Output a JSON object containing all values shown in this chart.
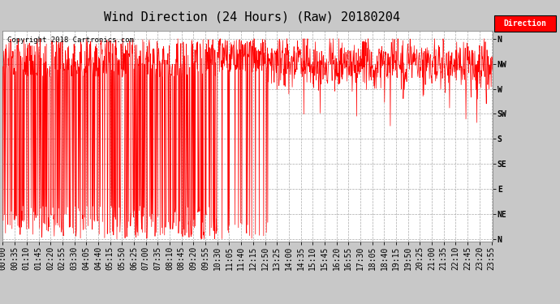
{
  "title": "Wind Direction (24 Hours) (Raw) 20180204",
  "copyright_text": "Copyright 2018 Cartronics.com",
  "background_color": "#c8c8c8",
  "plot_bg_color": "#ffffff",
  "line_color": "#ff0000",
  "grid_color": "#aaaaaa",
  "ytick_labels": [
    "N",
    "NW",
    "W",
    "SW",
    "S",
    "SE",
    "E",
    "NE",
    "N"
  ],
  "ytick_values": [
    360,
    315,
    270,
    225,
    180,
    135,
    90,
    45,
    0
  ],
  "ylim": [
    -5,
    375
  ],
  "legend_label": "Direction",
  "legend_bg": "#ff0000",
  "legend_text_color": "#ffffff",
  "title_fontsize": 11,
  "tick_fontsize": 7,
  "copyright_fontsize": 6.5
}
